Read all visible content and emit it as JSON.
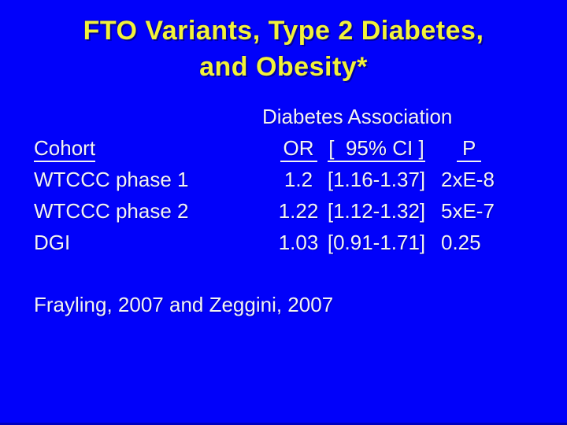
{
  "slide": {
    "title_line1": "FTO Variants, Type 2 Diabetes,",
    "title_line2": "and Obesity*",
    "footnote": "Frayling, 2007 and Zeggini, 2007"
  },
  "table": {
    "caption": "Diabetes Association",
    "headers": {
      "cohort": "Cohort",
      "or": "OR",
      "ci": "[  95% CI ]",
      "p": "P"
    },
    "rows": [
      {
        "cohort": "WTCCC phase 1",
        "or": "1.2",
        "ci": "[1.16-1.37]",
        "p": "2xE-8"
      },
      {
        "cohort": "WTCCC phase 2",
        "or": "1.22",
        "ci": "[1.12-1.32]",
        "p": "5xE-7"
      },
      {
        "cohort": "DGI",
        "or": "1.03",
        "ci": "[0.91-1.71]",
        "p": "0.25"
      }
    ]
  },
  "colors": {
    "background": "#0101fa",
    "title_text": "#f2f23a",
    "body_text": "#f3f3f3"
  }
}
